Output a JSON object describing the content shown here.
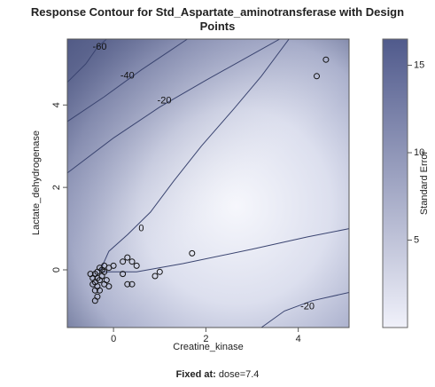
{
  "chart_data": {
    "type": "contour",
    "title_line1": "Response Contour for Std_Aspartate_aminotransferase with Design",
    "title_line2": "Points",
    "xlabel": "Creatine_kinase",
    "ylabel": "Lactate_dehydrogenase",
    "xlim": [
      -1,
      5.1
    ],
    "ylim": [
      -1.4,
      5.6
    ],
    "x_ticks": [
      0,
      2,
      4
    ],
    "y_ticks": [
      0,
      2,
      4
    ],
    "contour_labels": [
      {
        "text": "-60",
        "x": -0.3,
        "y": 5.4
      },
      {
        "text": "-40",
        "x": 0.3,
        "y": 4.7
      },
      {
        "text": "-20",
        "x": 1.1,
        "y": 4.1
      },
      {
        "text": "0",
        "x": 0.6,
        "y": 1.0
      },
      {
        "text": "-20",
        "x": 4.2,
        "y": -0.9
      }
    ],
    "contour_lines": [
      {
        "level": -60,
        "points": [
          [
            -1,
            4.55
          ],
          [
            -0.6,
            5.0
          ],
          [
            -0.35,
            5.4
          ],
          [
            -0.15,
            5.6
          ]
        ]
      },
      {
        "level": -40,
        "points": [
          [
            -1,
            3.6
          ],
          [
            -0.2,
            4.2
          ],
          [
            0.6,
            4.85
          ],
          [
            1.2,
            5.3
          ],
          [
            1.6,
            5.6
          ]
        ]
      },
      {
        "level": -20,
        "points": [
          [
            -1,
            2.35
          ],
          [
            0.0,
            3.2
          ],
          [
            1.0,
            3.95
          ],
          [
            2.0,
            4.6
          ],
          [
            3.2,
            5.35
          ],
          [
            3.6,
            5.6
          ]
        ]
      },
      {
        "level": 0,
        "points": [
          [
            -0.3,
            -0.05
          ],
          [
            -0.1,
            0.45
          ],
          [
            0.3,
            0.85
          ],
          [
            0.8,
            1.4
          ],
          [
            1.3,
            2.15
          ],
          [
            1.9,
            3.0
          ],
          [
            2.6,
            3.9
          ],
          [
            3.2,
            4.7
          ],
          [
            3.8,
            5.6
          ]
        ]
      },
      {
        "level": 0,
        "points": [
          [
            -0.3,
            -0.05
          ],
          [
            0.5,
            -0.05
          ],
          [
            1.5,
            0.15
          ],
          [
            3.0,
            0.5
          ],
          [
            4.2,
            0.8
          ],
          [
            5.1,
            1.0
          ]
        ]
      },
      {
        "level": -20,
        "points": [
          [
            3.2,
            -1.4
          ],
          [
            3.7,
            -1.0
          ],
          [
            4.3,
            -0.75
          ],
          [
            5.1,
            -0.55
          ]
        ]
      }
    ],
    "design_points": [
      [
        4.6,
        5.1
      ],
      [
        4.4,
        4.7
      ],
      [
        1.7,
        0.4
      ],
      [
        1.0,
        -0.05
      ],
      [
        0.9,
        -0.15
      ],
      [
        0.5,
        0.1
      ],
      [
        0.4,
        0.2
      ],
      [
        0.3,
        0.3
      ],
      [
        0.2,
        0.2
      ],
      [
        0.3,
        -0.35
      ],
      [
        0.4,
        -0.35
      ],
      [
        0.0,
        0.1
      ],
      [
        -0.1,
        0.05
      ],
      [
        0.2,
        -0.1
      ],
      [
        -0.2,
        0.1
      ],
      [
        -0.3,
        0.05
      ],
      [
        -0.35,
        -0.05
      ],
      [
        -0.4,
        -0.1
      ],
      [
        -0.35,
        -0.2
      ],
      [
        -0.3,
        -0.25
      ],
      [
        -0.4,
        -0.3
      ],
      [
        -0.45,
        -0.35
      ],
      [
        -0.35,
        -0.4
      ],
      [
        -0.3,
        -0.5
      ],
      [
        -0.4,
        -0.5
      ],
      [
        -0.35,
        -0.65
      ],
      [
        -0.4,
        -0.75
      ],
      [
        -0.2,
        -0.35
      ],
      [
        -0.25,
        -0.15
      ],
      [
        -0.15,
        -0.25
      ],
      [
        -0.1,
        -0.4
      ],
      [
        -0.45,
        -0.2
      ],
      [
        -0.5,
        -0.1
      ],
      [
        -0.25,
        0.0
      ],
      [
        -0.2,
        -0.05
      ]
    ],
    "colorbar": {
      "label": "Standard Error",
      "min": 0,
      "max": 16.5,
      "ticks": [
        5,
        10,
        15
      ],
      "color_low": "#f0f1fa",
      "color_high": "#505a8c"
    },
    "footnote_label": "Fixed at:",
    "footnote_value": "dose=7.4"
  }
}
